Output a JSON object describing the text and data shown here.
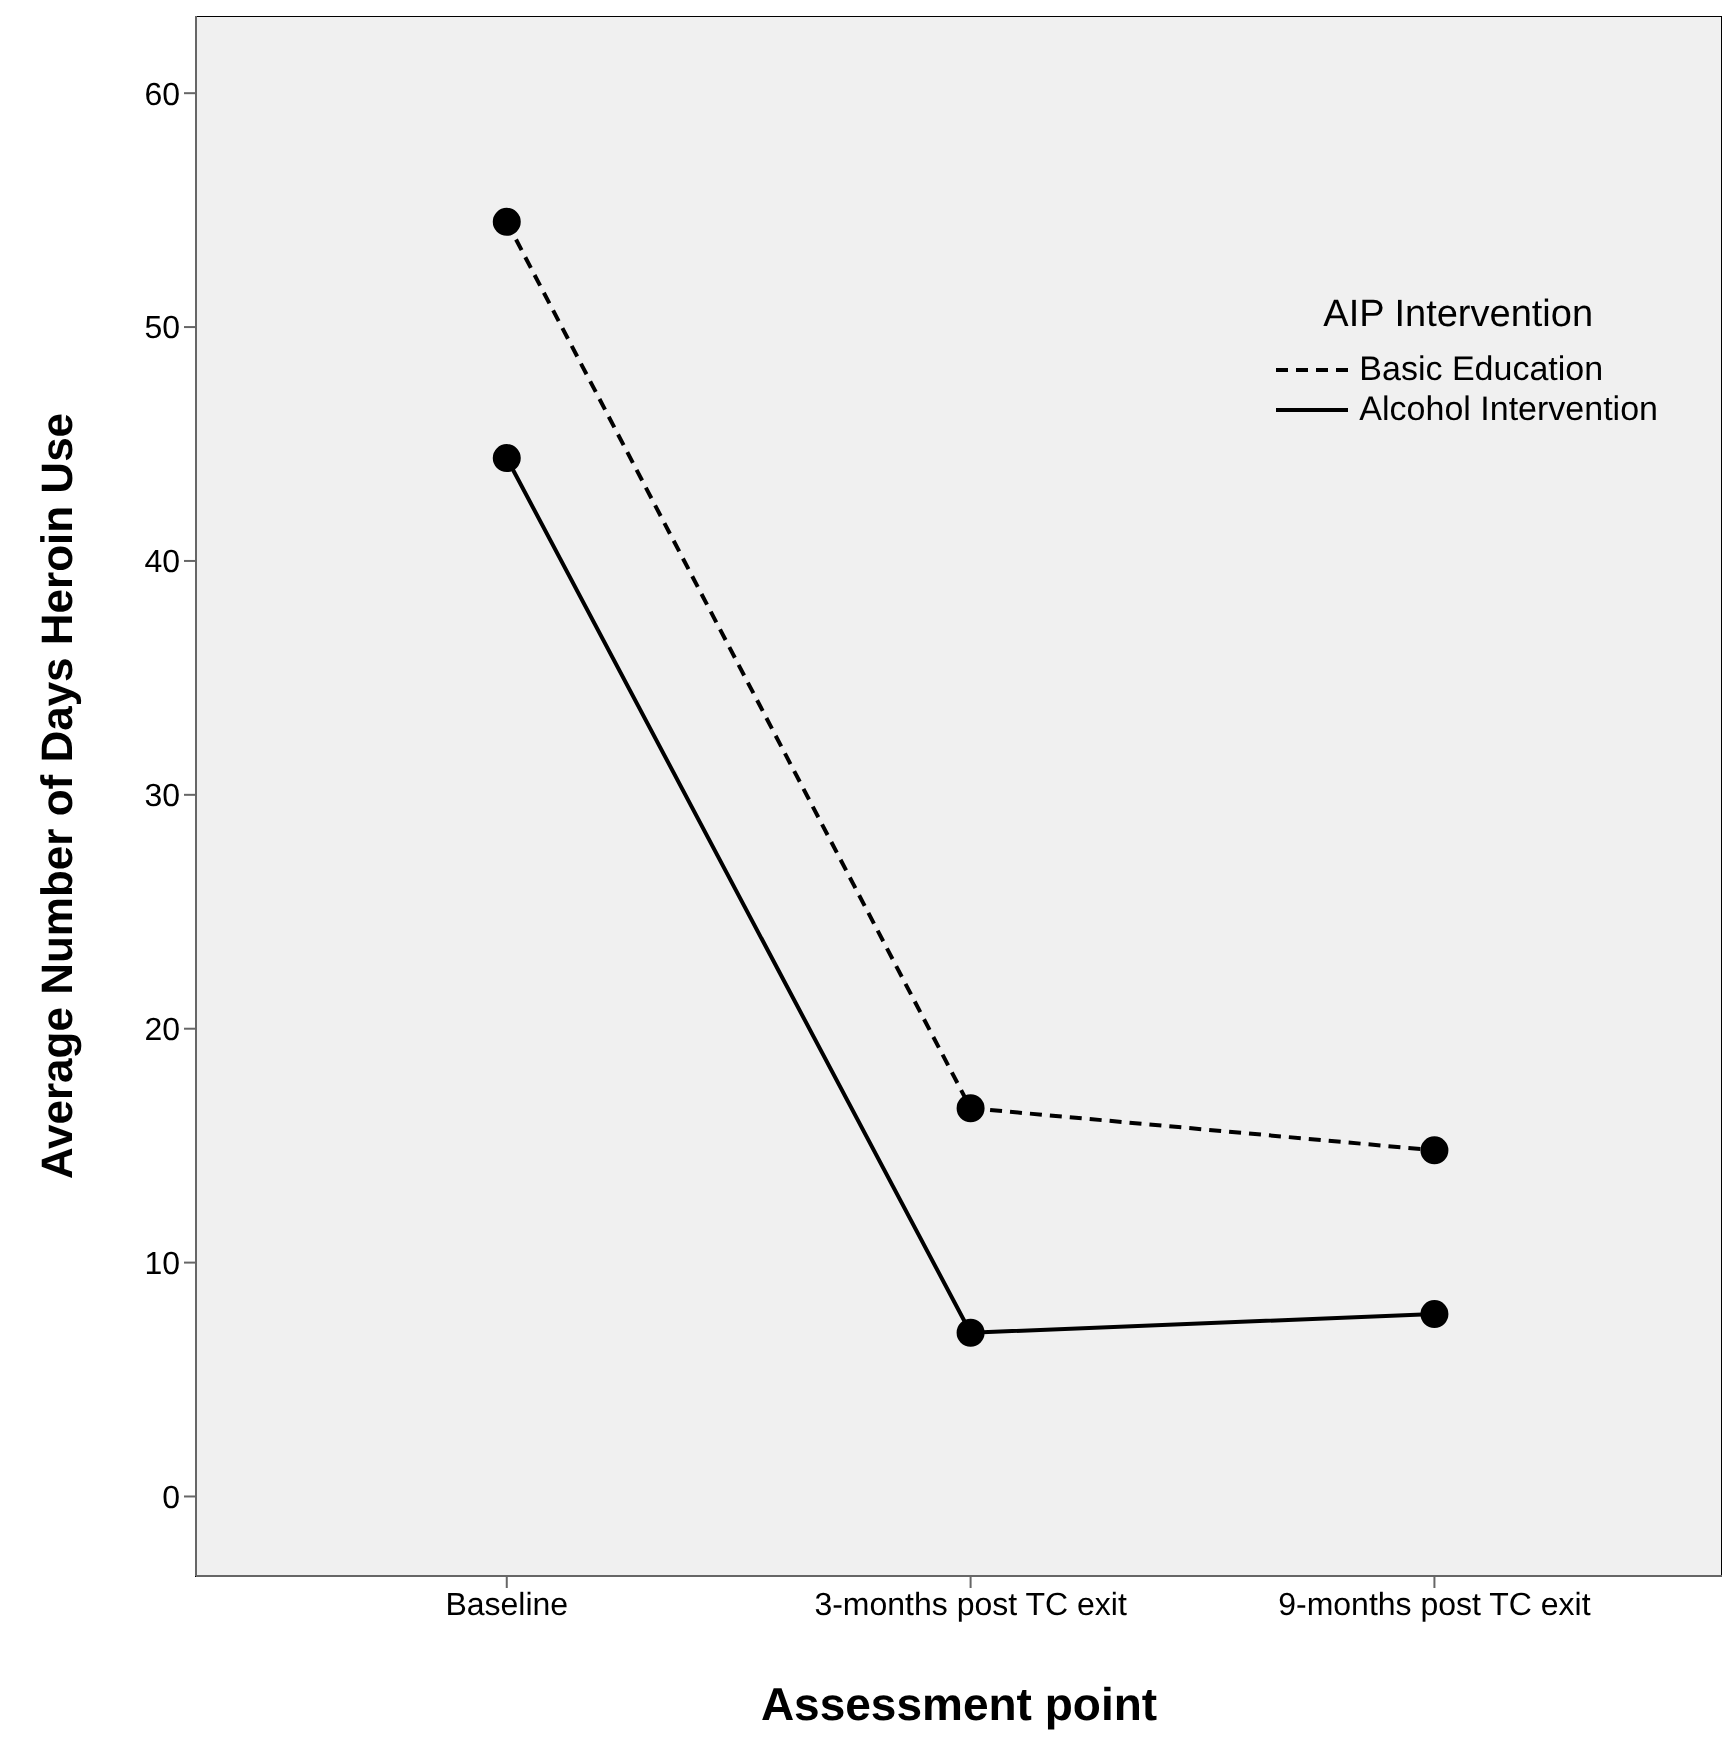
{
  "chart_data": {
    "type": "line",
    "xlabel": "Assessment point",
    "ylabel": "Average Number of Days Heroin Use",
    "legend_title": "AIP Intervention",
    "categories": [
      "Baseline",
      "3-months post TC exit",
      "9-months post TC exit"
    ],
    "series": [
      {
        "name": "Basic Education",
        "color": "#000000",
        "line_style": "dashed",
        "values": [
          54.5,
          16.6,
          14.8
        ]
      },
      {
        "name": "Alcohol Intervention",
        "color": "#000000",
        "line_style": "solid",
        "values": [
          44.4,
          7.0,
          7.8
        ]
      }
    ],
    "ylim": [
      -3.4,
      63.3
    ],
    "yticks": [
      0,
      10,
      20,
      30,
      40,
      50,
      60
    ],
    "legend": "top right",
    "marker": "circle"
  }
}
